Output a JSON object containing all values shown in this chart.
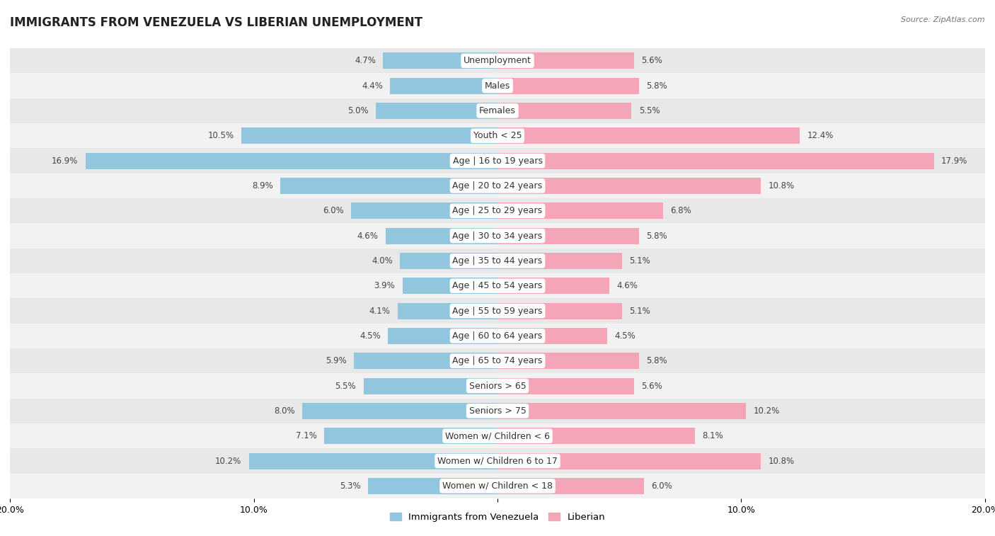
{
  "title": "IMMIGRANTS FROM VENEZUELA VS LIBERIAN UNEMPLOYMENT",
  "source": "Source: ZipAtlas.com",
  "categories": [
    "Unemployment",
    "Males",
    "Females",
    "Youth < 25",
    "Age | 16 to 19 years",
    "Age | 20 to 24 years",
    "Age | 25 to 29 years",
    "Age | 30 to 34 years",
    "Age | 35 to 44 years",
    "Age | 45 to 54 years",
    "Age | 55 to 59 years",
    "Age | 60 to 64 years",
    "Age | 65 to 74 years",
    "Seniors > 65",
    "Seniors > 75",
    "Women w/ Children < 6",
    "Women w/ Children 6 to 17",
    "Women w/ Children < 18"
  ],
  "venezuela_values": [
    4.7,
    4.4,
    5.0,
    10.5,
    16.9,
    8.9,
    6.0,
    4.6,
    4.0,
    3.9,
    4.1,
    4.5,
    5.9,
    5.5,
    8.0,
    7.1,
    10.2,
    5.3
  ],
  "liberian_values": [
    5.6,
    5.8,
    5.5,
    12.4,
    17.9,
    10.8,
    6.8,
    5.8,
    5.1,
    4.6,
    5.1,
    4.5,
    5.8,
    5.6,
    10.2,
    8.1,
    10.8,
    6.0
  ],
  "venezuela_color": "#92c5de",
  "liberian_color": "#f4a6b8",
  "xlim": 20.0,
  "background_color": "#ffffff",
  "row_colors": [
    "#e8e8e8",
    "#f2f2f2"
  ],
  "bar_height": 0.65,
  "label_fontsize": 9.0,
  "value_fontsize": 8.5,
  "title_fontsize": 12,
  "legend_fontsize": 9.5
}
